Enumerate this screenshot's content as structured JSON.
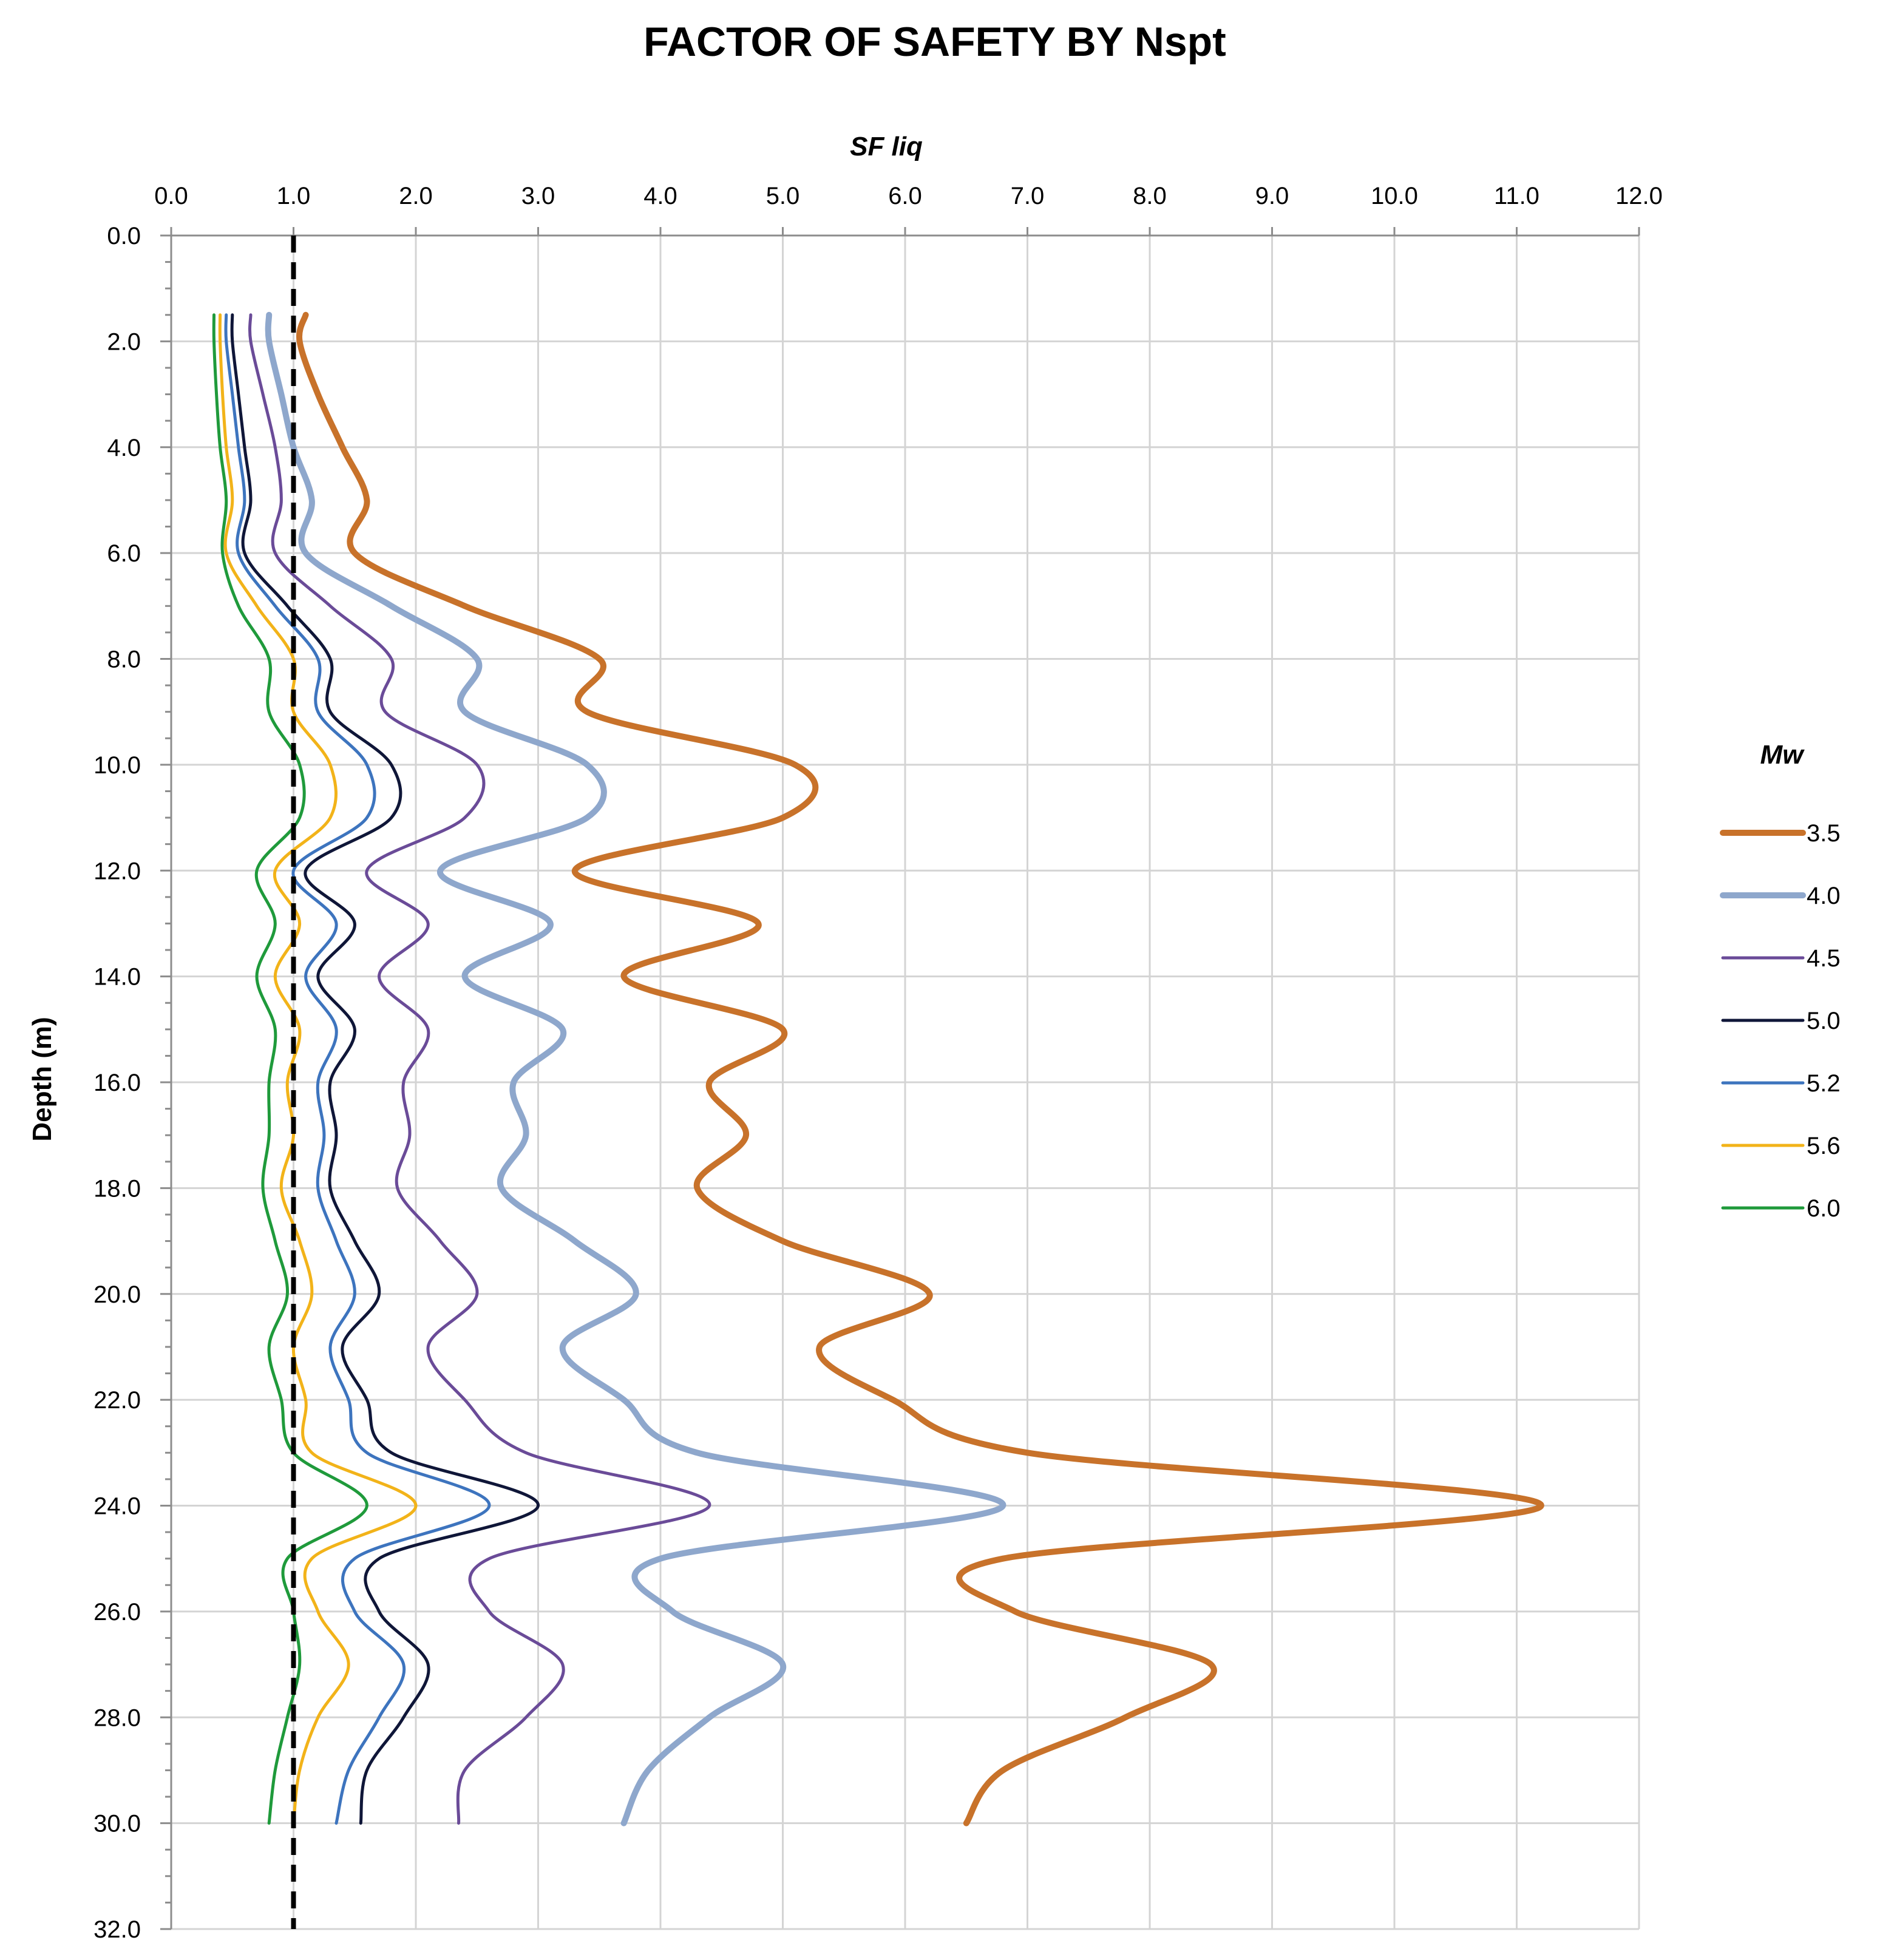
{
  "chart_data": {
    "type": "line",
    "title": "FACTOR OF SAFETY BY Nspt",
    "xlabel": "SF liq",
    "ylabel": "Depth  (m)",
    "xlim": [
      0,
      12
    ],
    "ylim": [
      0,
      32
    ],
    "x_ticks": [
      "0.0",
      "1.0",
      "2.0",
      "3.0",
      "4.0",
      "5.0",
      "6.0",
      "7.0",
      "8.0",
      "9.0",
      "10.0",
      "11.0",
      "12.0"
    ],
    "y_ticks": [
      "0.0",
      "2.0",
      "4.0",
      "6.0",
      "8.0",
      "10.0",
      "12.0",
      "14.0",
      "16.0",
      "18.0",
      "20.0",
      "22.0",
      "24.0",
      "26.0",
      "28.0",
      "30.0",
      "32.0"
    ],
    "reference_line": {
      "x": 1.0,
      "style": "dashed",
      "color": "#000000"
    },
    "legend": {
      "title": "Mw",
      "position": "right"
    },
    "depths": [
      1.5,
      2,
      3,
      4,
      5,
      6,
      7,
      8,
      9,
      10,
      11,
      12,
      13,
      14,
      15,
      16,
      17,
      18,
      19,
      20,
      21,
      22,
      23,
      24,
      25,
      26,
      27,
      28,
      29,
      30
    ],
    "series": [
      {
        "name": "3.5",
        "color": "#C8722A",
        "width": 10,
        "values": [
          1.1,
          1.05,
          1.2,
          1.4,
          1.6,
          1.5,
          2.4,
          3.5,
          3.4,
          5.1,
          5.0,
          3.3,
          4.8,
          3.7,
          5.0,
          4.4,
          4.7,
          4.3,
          5.0,
          6.2,
          5.3,
          5.9,
          7.0,
          11.2,
          6.8,
          6.9,
          8.5,
          7.8,
          6.8,
          6.5
        ]
      },
      {
        "name": "4.0",
        "color": "#8EA7CC",
        "width": 10,
        "values": [
          0.8,
          0.8,
          0.9,
          1.0,
          1.15,
          1.1,
          1.8,
          2.5,
          2.4,
          3.4,
          3.4,
          2.2,
          3.1,
          2.4,
          3.2,
          2.8,
          2.9,
          2.7,
          3.3,
          3.8,
          3.2,
          3.7,
          4.3,
          6.8,
          4.0,
          4.1,
          5.0,
          4.4,
          3.9,
          3.7
        ]
      },
      {
        "name": "4.5",
        "color": "#6A4B98",
        "width": 5,
        "values": [
          0.65,
          0.65,
          0.75,
          0.85,
          0.9,
          0.85,
          1.3,
          1.8,
          1.75,
          2.5,
          2.4,
          1.6,
          2.1,
          1.7,
          2.1,
          1.9,
          1.95,
          1.85,
          2.2,
          2.5,
          2.1,
          2.4,
          2.9,
          4.4,
          2.6,
          2.6,
          3.2,
          2.9,
          2.4,
          2.35
        ]
      },
      {
        "name": "5.0",
        "color": "#0F1638",
        "width": 5,
        "values": [
          0.5,
          0.5,
          0.55,
          0.6,
          0.65,
          0.6,
          0.95,
          1.3,
          1.3,
          1.8,
          1.8,
          1.1,
          1.5,
          1.2,
          1.5,
          1.3,
          1.35,
          1.3,
          1.5,
          1.7,
          1.4,
          1.6,
          1.8,
          3.0,
          1.7,
          1.7,
          2.1,
          1.9,
          1.6,
          1.55
        ]
      },
      {
        "name": "5.2",
        "color": "#3D74BE",
        "width": 5,
        "values": [
          0.45,
          0.45,
          0.5,
          0.55,
          0.6,
          0.55,
          0.85,
          1.2,
          1.2,
          1.6,
          1.6,
          1.0,
          1.35,
          1.1,
          1.35,
          1.2,
          1.25,
          1.2,
          1.35,
          1.5,
          1.3,
          1.45,
          1.6,
          2.6,
          1.5,
          1.5,
          1.9,
          1.7,
          1.45,
          1.35
        ]
      },
      {
        "name": "5.6",
        "color": "#F2B319",
        "width": 5,
        "values": [
          0.4,
          0.4,
          0.42,
          0.45,
          0.5,
          0.45,
          0.7,
          1.0,
          1.0,
          1.3,
          1.3,
          0.85,
          1.05,
          0.85,
          1.05,
          0.95,
          1.0,
          0.9,
          1.05,
          1.15,
          1.0,
          1.1,
          1.15,
          2.0,
          1.15,
          1.2,
          1.45,
          1.2,
          1.05,
          1.0
        ]
      },
      {
        "name": "6.0",
        "color": "#1F9A3B",
        "width": 5,
        "values": [
          0.35,
          0.35,
          0.37,
          0.4,
          0.45,
          0.42,
          0.55,
          0.8,
          0.8,
          1.05,
          1.05,
          0.7,
          0.85,
          0.7,
          0.85,
          0.8,
          0.8,
          0.75,
          0.85,
          0.95,
          0.8,
          0.9,
          1.0,
          1.6,
          0.95,
          1.0,
          1.05,
          0.95,
          0.85,
          0.8
        ]
      }
    ]
  }
}
